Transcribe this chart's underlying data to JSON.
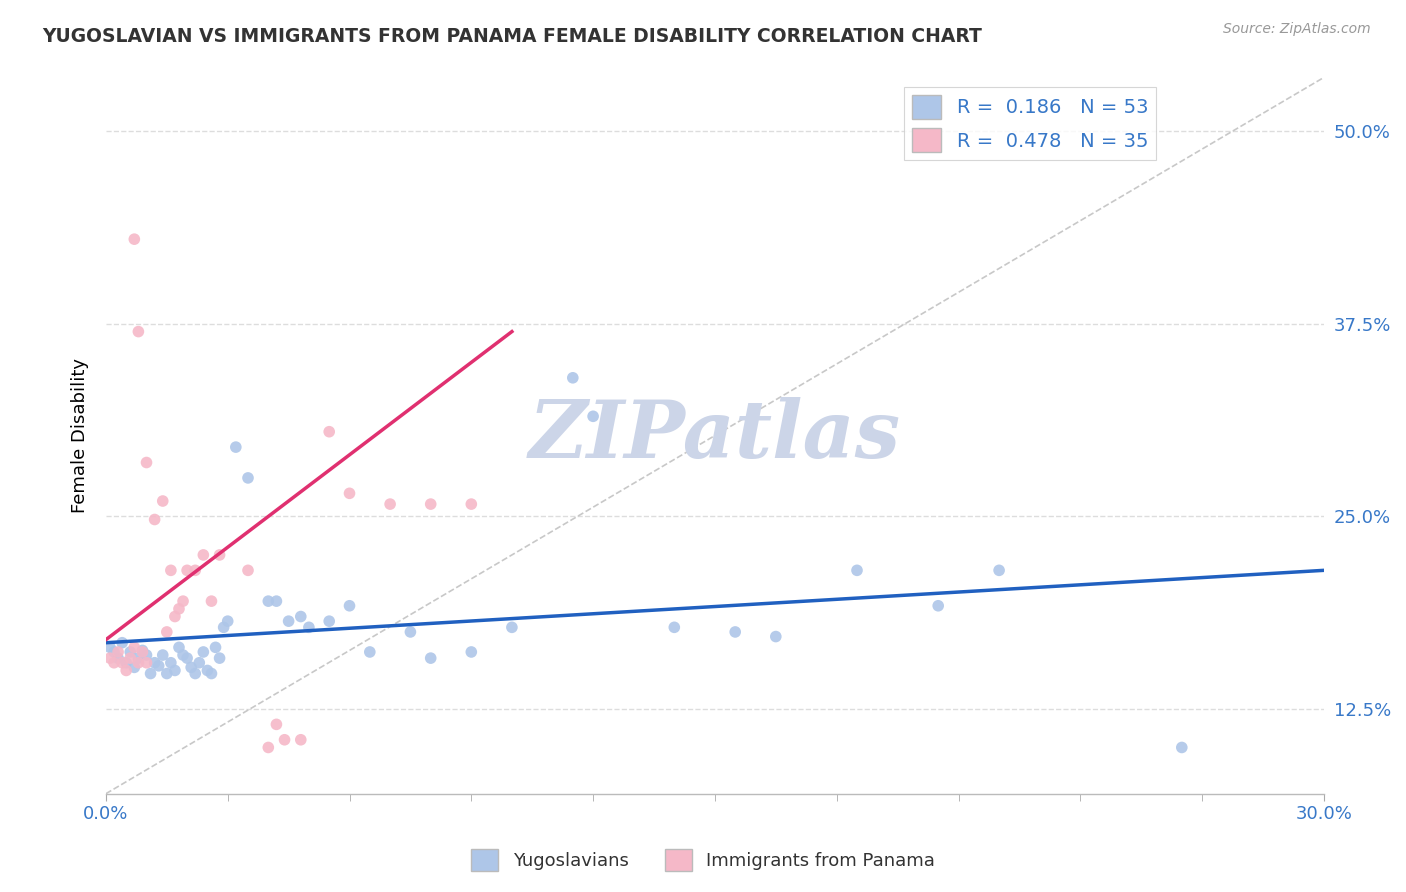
{
  "title": "YUGOSLAVIAN VS IMMIGRANTS FROM PANAMA FEMALE DISABILITY CORRELATION CHART",
  "source": "Source: ZipAtlas.com",
  "ylabel": "Female Disability",
  "ylabel_ticks": [
    "12.5%",
    "25.0%",
    "37.5%",
    "50.0%"
  ],
  "xlim": [
    0.0,
    0.3
  ],
  "ylim": [
    0.07,
    0.535
  ],
  "R_blue": 0.186,
  "N_blue": 53,
  "R_pink": 0.478,
  "N_pink": 35,
  "blue_color": "#aec6e8",
  "pink_color": "#f5b8c8",
  "blue_line_color": "#2060c0",
  "pink_line_color": "#e03070",
  "diagonal_color": "#c8c8c8",
  "blue_line_x": [
    0.0,
    0.3
  ],
  "blue_line_y": [
    0.168,
    0.215
  ],
  "pink_line_x": [
    0.0,
    0.1
  ],
  "pink_line_y": [
    0.17,
    0.37
  ],
  "blue_scatter": [
    [
      0.001,
      0.165
    ],
    [
      0.002,
      0.162
    ],
    [
      0.003,
      0.158
    ],
    [
      0.004,
      0.168
    ],
    [
      0.005,
      0.155
    ],
    [
      0.006,
      0.162
    ],
    [
      0.007,
      0.152
    ],
    [
      0.008,
      0.158
    ],
    [
      0.009,
      0.163
    ],
    [
      0.01,
      0.16
    ],
    [
      0.011,
      0.148
    ],
    [
      0.012,
      0.155
    ],
    [
      0.013,
      0.153
    ],
    [
      0.014,
      0.16
    ],
    [
      0.015,
      0.148
    ],
    [
      0.016,
      0.155
    ],
    [
      0.017,
      0.15
    ],
    [
      0.018,
      0.165
    ],
    [
      0.019,
      0.16
    ],
    [
      0.02,
      0.158
    ],
    [
      0.021,
      0.152
    ],
    [
      0.022,
      0.148
    ],
    [
      0.023,
      0.155
    ],
    [
      0.024,
      0.162
    ],
    [
      0.025,
      0.15
    ],
    [
      0.026,
      0.148
    ],
    [
      0.027,
      0.165
    ],
    [
      0.028,
      0.158
    ],
    [
      0.029,
      0.178
    ],
    [
      0.03,
      0.182
    ],
    [
      0.032,
      0.295
    ],
    [
      0.035,
      0.275
    ],
    [
      0.04,
      0.195
    ],
    [
      0.042,
      0.195
    ],
    [
      0.045,
      0.182
    ],
    [
      0.048,
      0.185
    ],
    [
      0.05,
      0.178
    ],
    [
      0.055,
      0.182
    ],
    [
      0.06,
      0.192
    ],
    [
      0.065,
      0.162
    ],
    [
      0.075,
      0.175
    ],
    [
      0.08,
      0.158
    ],
    [
      0.09,
      0.162
    ],
    [
      0.1,
      0.178
    ],
    [
      0.115,
      0.34
    ],
    [
      0.12,
      0.315
    ],
    [
      0.14,
      0.178
    ],
    [
      0.155,
      0.175
    ],
    [
      0.165,
      0.172
    ],
    [
      0.185,
      0.215
    ],
    [
      0.205,
      0.192
    ],
    [
      0.22,
      0.215
    ],
    [
      0.265,
      0.1
    ]
  ],
  "pink_scatter": [
    [
      0.001,
      0.158
    ],
    [
      0.002,
      0.155
    ],
    [
      0.003,
      0.162
    ],
    [
      0.004,
      0.155
    ],
    [
      0.005,
      0.15
    ],
    [
      0.006,
      0.158
    ],
    [
      0.007,
      0.165
    ],
    [
      0.008,
      0.155
    ],
    [
      0.009,
      0.162
    ],
    [
      0.01,
      0.155
    ],
    [
      0.012,
      0.248
    ],
    [
      0.014,
      0.26
    ],
    [
      0.015,
      0.175
    ],
    [
      0.016,
      0.215
    ],
    [
      0.017,
      0.185
    ],
    [
      0.018,
      0.19
    ],
    [
      0.019,
      0.195
    ],
    [
      0.02,
      0.215
    ],
    [
      0.022,
      0.215
    ],
    [
      0.024,
      0.225
    ],
    [
      0.026,
      0.195
    ],
    [
      0.028,
      0.225
    ],
    [
      0.007,
      0.43
    ],
    [
      0.008,
      0.37
    ],
    [
      0.01,
      0.285
    ],
    [
      0.035,
      0.215
    ],
    [
      0.04,
      0.1
    ],
    [
      0.042,
      0.115
    ],
    [
      0.044,
      0.105
    ],
    [
      0.048,
      0.105
    ],
    [
      0.055,
      0.305
    ],
    [
      0.06,
      0.265
    ],
    [
      0.07,
      0.258
    ],
    [
      0.08,
      0.258
    ],
    [
      0.09,
      0.258
    ]
  ],
  "watermark_text": "ZIPatlas",
  "watermark_color": "#ccd5e8"
}
